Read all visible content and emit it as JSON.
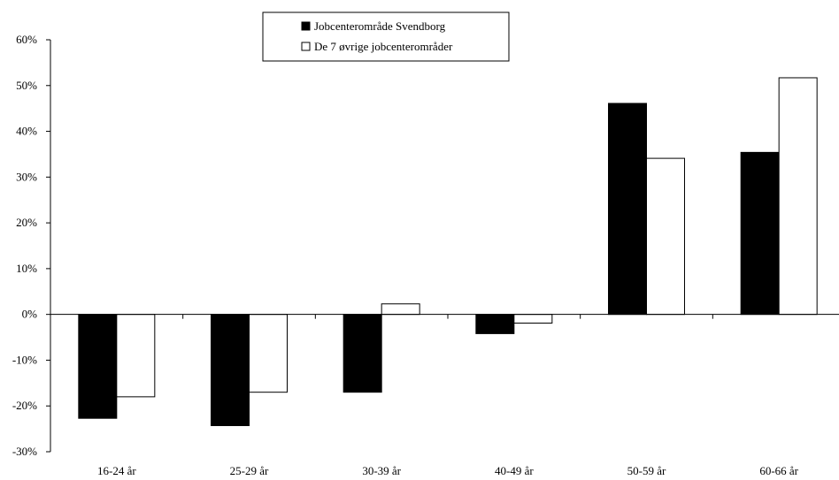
{
  "chart_data": {
    "type": "bar",
    "title": "",
    "xlabel": "",
    "ylabel": "",
    "categories": [
      "16-24 år",
      "25-29 år",
      "30-39 år",
      "40-49 år",
      "50-59 år",
      "60-66 år"
    ],
    "series": [
      {
        "name": "Jobcenterområde Svendborg",
        "color": "#000000",
        "values": [
          -22.7,
          -24.3,
          -17.0,
          -4.2,
          46.1,
          35.4
        ]
      },
      {
        "name": "De 7 øvrige jobcenterområder",
        "color": "#ffffff",
        "values": [
          -18.0,
          -17.0,
          2.3,
          -1.9,
          34.1,
          51.7
        ]
      }
    ],
    "ylim": [
      -30,
      60
    ],
    "yticks": [
      -30,
      -20,
      -10,
      0,
      10,
      20,
      30,
      40,
      50,
      60
    ],
    "ytick_labels": [
      "-30%",
      "-20%",
      "-10%",
      "0%",
      "10%",
      "20%",
      "30%",
      "40%",
      "50%",
      "60%"
    ],
    "grid": false,
    "legend_position": "top-center"
  }
}
